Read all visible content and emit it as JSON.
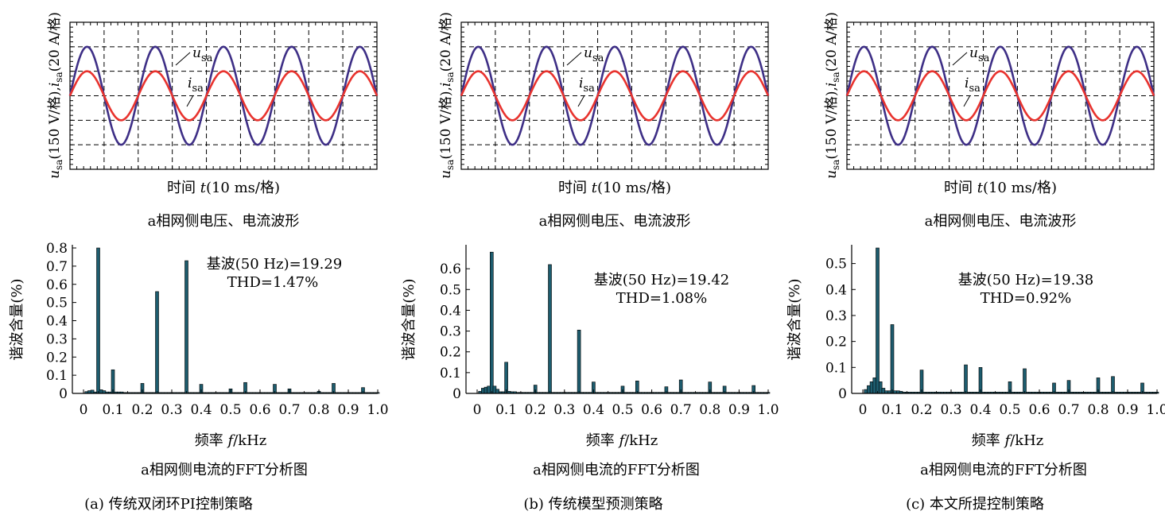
{
  "colors": {
    "voltage": "#3e2f86",
    "current": "#e8332e",
    "bar": "#1d5c6e",
    "grid": "#000000"
  },
  "wave_texts": {
    "ylabel": {
      "u": "u",
      "u_sub": "sa",
      "mid": "(150 V/格),",
      "i": "i",
      "i_sub": "sa",
      "end": "(20 A/格)"
    },
    "xlabel": {
      "pre": "时间 ",
      "t": "t",
      "post": "(10 ms/格)"
    },
    "caption": "a相网侧电压、电流波形",
    "u_label": "u",
    "u_sub": "sa",
    "i_label": "i",
    "i_sub": "sa"
  },
  "fft_texts": {
    "ylabel": "谐波含量(%)",
    "xlabel": {
      "pre": "频率 ",
      "f": "f",
      "post": "/kHz"
    },
    "caption": "a相网侧电流的FFT分析图",
    "xticks": [
      "0",
      "0.1",
      "0.2",
      "0.3",
      "0.4",
      "0.5",
      "0.6",
      "0.7",
      "0.8",
      "0.9",
      "1.0"
    ]
  },
  "chart_data": [
    {
      "type": "line",
      "panel": "a",
      "x_unit": "10 ms/div",
      "y_unit": "u_sa 150 V/div, i_sa 20 A/div",
      "divisions": {
        "x": 9,
        "y": 6
      },
      "grid": true,
      "series": [
        {
          "name": "u_sa",
          "waveform": "sine",
          "amplitude_div": 2.0,
          "period_div": 2.0
        },
        {
          "name": "i_sa",
          "waveform": "sine",
          "amplitude_div": 1.0,
          "period_div": 2.0
        }
      ]
    },
    {
      "type": "bar",
      "panel": "a",
      "title": "基波(50 Hz)=19.29",
      "subtitle": "THD=1.47%",
      "xlabel": "频率 f/kHz",
      "ylabel": "谐波含量(%)",
      "xlim": [
        0,
        1.0
      ],
      "ylim": [
        0,
        0.8
      ],
      "yticks": [
        "0",
        "0.1",
        "0.2",
        "0.3",
        "0.4",
        "0.5",
        "0.6",
        "0.7",
        "0.8"
      ],
      "x": [
        0.01,
        0.02,
        0.03,
        0.04,
        0.05,
        0.06,
        0.07,
        0.08,
        0.09,
        0.1,
        0.11,
        0.12,
        0.13,
        0.14,
        0.15,
        0.16,
        0.17,
        0.18,
        0.19,
        0.2,
        0.21,
        0.22,
        0.23,
        0.24,
        0.25,
        0.26,
        0.27,
        0.28,
        0.29,
        0.3,
        0.31,
        0.32,
        0.33,
        0.34,
        0.35,
        0.36,
        0.37,
        0.38,
        0.39,
        0.4,
        0.41,
        0.42,
        0.43,
        0.44,
        0.45,
        0.46,
        0.47,
        0.48,
        0.49,
        0.5,
        0.51,
        0.52,
        0.53,
        0.54,
        0.55,
        0.56,
        0.57,
        0.58,
        0.59,
        0.6,
        0.61,
        0.62,
        0.63,
        0.64,
        0.65,
        0.66,
        0.67,
        0.68,
        0.69,
        0.7,
        0.71,
        0.72,
        0.73,
        0.74,
        0.75,
        0.76,
        0.77,
        0.78,
        0.79,
        0.8,
        0.81,
        0.82,
        0.83,
        0.84,
        0.85,
        0.86,
        0.87,
        0.88,
        0.89,
        0.9,
        0.91,
        0.92,
        0.93,
        0.94,
        0.95,
        0.96,
        0.97,
        0.98,
        0.99,
        1.0
      ],
      "values": [
        0.01,
        0.015,
        0.018,
        0.008,
        0.8,
        0.02,
        0.015,
        0.008,
        0.008,
        0.13,
        0.008,
        0.008,
        0.008,
        0.005,
        0.005,
        0.005,
        0.005,
        0.005,
        0.005,
        0.055,
        0.005,
        0.005,
        0.005,
        0.005,
        0.56,
        0.005,
        0.005,
        0.005,
        0.005,
        0.005,
        0.005,
        0.005,
        0.005,
        0.005,
        0.73,
        0.005,
        0.005,
        0.005,
        0.005,
        0.05,
        0.005,
        0.005,
        0.005,
        0.005,
        0.005,
        0.005,
        0.005,
        0.005,
        0.005,
        0.025,
        0.005,
        0.005,
        0.005,
        0.005,
        0.06,
        0.005,
        0.005,
        0.005,
        0.005,
        0.005,
        0.005,
        0.005,
        0.005,
        0.005,
        0.05,
        0.005,
        0.005,
        0.005,
        0.005,
        0.025,
        0.005,
        0.005,
        0.005,
        0.005,
        0.005,
        0.005,
        0.005,
        0.005,
        0.005,
        0.012,
        0.005,
        0.005,
        0.005,
        0.005,
        0.055,
        0.005,
        0.005,
        0.005,
        0.005,
        0.005,
        0.005,
        0.005,
        0.005,
        0.005,
        0.032,
        0.005,
        0.005,
        0.005,
        0.005,
        0.005
      ]
    },
    {
      "type": "line",
      "panel": "b",
      "x_unit": "10 ms/div",
      "y_unit": "u_sa 150 V/div, i_sa 20 A/div",
      "divisions": {
        "x": 9,
        "y": 6
      },
      "grid": true,
      "series": [
        {
          "name": "u_sa",
          "waveform": "sine",
          "amplitude_div": 2.0,
          "period_div": 2.0
        },
        {
          "name": "i_sa",
          "waveform": "sine",
          "amplitude_div": 1.0,
          "period_div": 2.0
        }
      ]
    },
    {
      "type": "bar",
      "panel": "b",
      "title": "基波(50 Hz)=19.42",
      "subtitle": "THD=1.08%",
      "xlabel": "频率 f/kHz",
      "ylabel": "谐波含量(%)",
      "xlim": [
        0,
        1.0
      ],
      "ylim": [
        0,
        0.7
      ],
      "yticks": [
        "0",
        "0.1",
        "0.2",
        "0.3",
        "0.4",
        "0.5",
        "0.6"
      ],
      "x": [
        0.01,
        0.02,
        0.03,
        0.04,
        0.05,
        0.06,
        0.07,
        0.08,
        0.09,
        0.1,
        0.11,
        0.12,
        0.13,
        0.14,
        0.15,
        0.16,
        0.17,
        0.18,
        0.19,
        0.2,
        0.21,
        0.22,
        0.23,
        0.24,
        0.25,
        0.26,
        0.27,
        0.28,
        0.29,
        0.3,
        0.31,
        0.32,
        0.33,
        0.34,
        0.35,
        0.36,
        0.37,
        0.38,
        0.39,
        0.4,
        0.41,
        0.42,
        0.43,
        0.44,
        0.45,
        0.46,
        0.47,
        0.48,
        0.49,
        0.5,
        0.51,
        0.52,
        0.53,
        0.54,
        0.55,
        0.56,
        0.57,
        0.58,
        0.59,
        0.6,
        0.61,
        0.62,
        0.63,
        0.64,
        0.65,
        0.66,
        0.67,
        0.68,
        0.69,
        0.7,
        0.71,
        0.72,
        0.73,
        0.74,
        0.75,
        0.76,
        0.77,
        0.78,
        0.79,
        0.8,
        0.81,
        0.82,
        0.83,
        0.84,
        0.85,
        0.86,
        0.87,
        0.88,
        0.89,
        0.9,
        0.91,
        0.92,
        0.93,
        0.94,
        0.95,
        0.96,
        0.97,
        0.98,
        0.99,
        1.0
      ],
      "values": [
        0.01,
        0.025,
        0.03,
        0.035,
        0.68,
        0.035,
        0.02,
        0.008,
        0.008,
        0.15,
        0.01,
        0.008,
        0.008,
        0.005,
        0.005,
        0.005,
        0.005,
        0.005,
        0.005,
        0.04,
        0.005,
        0.005,
        0.005,
        0.005,
        0.62,
        0.005,
        0.005,
        0.005,
        0.005,
        0.005,
        0.005,
        0.005,
        0.005,
        0.005,
        0.305,
        0.005,
        0.005,
        0.005,
        0.005,
        0.055,
        0.005,
        0.005,
        0.005,
        0.005,
        0.005,
        0.005,
        0.005,
        0.005,
        0.005,
        0.035,
        0.005,
        0.005,
        0.005,
        0.005,
        0.06,
        0.005,
        0.005,
        0.005,
        0.005,
        0.005,
        0.005,
        0.005,
        0.005,
        0.005,
        0.032,
        0.005,
        0.005,
        0.005,
        0.005,
        0.065,
        0.005,
        0.005,
        0.005,
        0.005,
        0.005,
        0.005,
        0.005,
        0.005,
        0.005,
        0.055,
        0.005,
        0.005,
        0.005,
        0.005,
        0.035,
        0.005,
        0.005,
        0.005,
        0.005,
        0.005,
        0.005,
        0.005,
        0.005,
        0.005,
        0.038,
        0.005,
        0.005,
        0.005,
        0.005,
        0.005
      ]
    },
    {
      "type": "line",
      "panel": "c",
      "x_unit": "10 ms/div",
      "y_unit": "u_sa 150 V/div, i_sa 20 A/div",
      "divisions": {
        "x": 9,
        "y": 6
      },
      "grid": true,
      "series": [
        {
          "name": "u_sa",
          "waveform": "sine",
          "amplitude_div": 2.0,
          "period_div": 2.0
        },
        {
          "name": "i_sa",
          "waveform": "sine",
          "amplitude_div": 1.0,
          "period_div": 2.0
        }
      ]
    },
    {
      "type": "bar",
      "panel": "c",
      "title": "基波(50 Hz)=19.38",
      "subtitle": "THD=0.92%",
      "xlabel": "频率 f/kHz",
      "ylabel": "谐波含量(%)",
      "xlim": [
        0,
        1.0
      ],
      "ylim": [
        0,
        0.56
      ],
      "yticks": [
        "0",
        "0.1",
        "0.2",
        "0.3",
        "0.4",
        "0.5"
      ],
      "x": [
        0.01,
        0.02,
        0.03,
        0.04,
        0.05,
        0.06,
        0.07,
        0.08,
        0.09,
        0.1,
        0.11,
        0.12,
        0.13,
        0.14,
        0.15,
        0.16,
        0.17,
        0.18,
        0.19,
        0.2,
        0.21,
        0.22,
        0.23,
        0.24,
        0.25,
        0.26,
        0.27,
        0.28,
        0.29,
        0.3,
        0.31,
        0.32,
        0.33,
        0.34,
        0.35,
        0.36,
        0.37,
        0.38,
        0.39,
        0.4,
        0.41,
        0.42,
        0.43,
        0.44,
        0.45,
        0.46,
        0.47,
        0.48,
        0.49,
        0.5,
        0.51,
        0.52,
        0.53,
        0.54,
        0.55,
        0.56,
        0.57,
        0.58,
        0.59,
        0.6,
        0.61,
        0.62,
        0.63,
        0.64,
        0.65,
        0.66,
        0.67,
        0.68,
        0.69,
        0.7,
        0.71,
        0.72,
        0.73,
        0.74,
        0.75,
        0.76,
        0.77,
        0.78,
        0.79,
        0.8,
        0.81,
        0.82,
        0.83,
        0.84,
        0.85,
        0.86,
        0.87,
        0.88,
        0.89,
        0.9,
        0.91,
        0.92,
        0.93,
        0.94,
        0.95,
        0.96,
        0.97,
        0.98,
        0.99,
        1.0
      ],
      "values": [
        0.015,
        0.03,
        0.045,
        0.06,
        0.56,
        0.045,
        0.02,
        0.01,
        0.01,
        0.265,
        0.01,
        0.01,
        0.008,
        0.005,
        0.005,
        0.005,
        0.005,
        0.005,
        0.005,
        0.09,
        0.005,
        0.005,
        0.005,
        0.005,
        0.005,
        0.005,
        0.005,
        0.005,
        0.005,
        0.005,
        0.005,
        0.005,
        0.005,
        0.005,
        0.11,
        0.005,
        0.005,
        0.005,
        0.005,
        0.1,
        0.005,
        0.005,
        0.005,
        0.005,
        0.005,
        0.005,
        0.005,
        0.005,
        0.005,
        0.045,
        0.005,
        0.005,
        0.005,
        0.005,
        0.095,
        0.005,
        0.005,
        0.005,
        0.005,
        0.005,
        0.005,
        0.005,
        0.005,
        0.005,
        0.04,
        0.005,
        0.005,
        0.005,
        0.005,
        0.05,
        0.005,
        0.005,
        0.005,
        0.005,
        0.005,
        0.005,
        0.005,
        0.005,
        0.005,
        0.06,
        0.005,
        0.005,
        0.005,
        0.005,
        0.065,
        0.005,
        0.005,
        0.005,
        0.005,
        0.005,
        0.005,
        0.005,
        0.005,
        0.005,
        0.04,
        0.005,
        0.005,
        0.005,
        0.005,
        0.005
      ]
    }
  ],
  "panels": [
    {
      "id": "a",
      "label": "(a) 传统双闭环PI控制策略"
    },
    {
      "id": "b",
      "label": "(b) 传统模型预测策略"
    },
    {
      "id": "c",
      "label": "(c) 本文所提控制策略"
    }
  ]
}
